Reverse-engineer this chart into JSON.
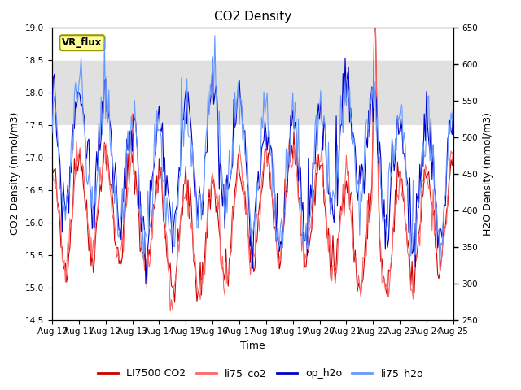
{
  "title": "CO2 Density",
  "xlabel": "Time",
  "ylabel_left": "CO2 Density (mmol/m3)",
  "ylabel_right": "H2O Density (mmol/m3)",
  "ylim_left": [
    14.5,
    19.0
  ],
  "ylim_right": [
    250,
    650
  ],
  "xlim": [
    0,
    360
  ],
  "x_tick_labels": [
    "Aug 10",
    "Aug 11",
    "Aug 12",
    "Aug 13",
    "Aug 14",
    "Aug 15",
    "Aug 16",
    "Aug 17",
    "Aug 18",
    "Aug 19",
    "Aug 20",
    "Aug 21",
    "Aug 22",
    "Aug 23",
    "Aug 24",
    "Aug 25"
  ],
  "x_tick_positions": [
    0,
    24,
    48,
    72,
    96,
    120,
    144,
    168,
    192,
    216,
    240,
    264,
    288,
    312,
    336,
    360
  ],
  "yticks_left": [
    14.5,
    15.0,
    15.5,
    16.0,
    16.5,
    17.0,
    17.5,
    18.0,
    18.5,
    19.0
  ],
  "yticks_right": [
    250,
    300,
    350,
    400,
    450,
    500,
    550,
    600,
    650
  ],
  "shaded_ymin": 17.5,
  "shaded_ymax": 18.5,
  "shaded_color": "#e0e0e0",
  "legend_labels": [
    "LI7500 CO2",
    "li75_co2",
    "op_h2o",
    "li75_h2o"
  ],
  "co2_color1": "#cc0000",
  "co2_color2": "#ff6666",
  "h2o_color1": "#0000cc",
  "h2o_color2": "#6699ff",
  "vr_flux_label": "VR_flux",
  "vr_flux_bg": "#ffff99",
  "vr_flux_border": "#999900",
  "title_fontsize": 11,
  "axis_label_fontsize": 9,
  "tick_fontsize": 7.5,
  "legend_fontsize": 9,
  "linewidth": 0.8
}
